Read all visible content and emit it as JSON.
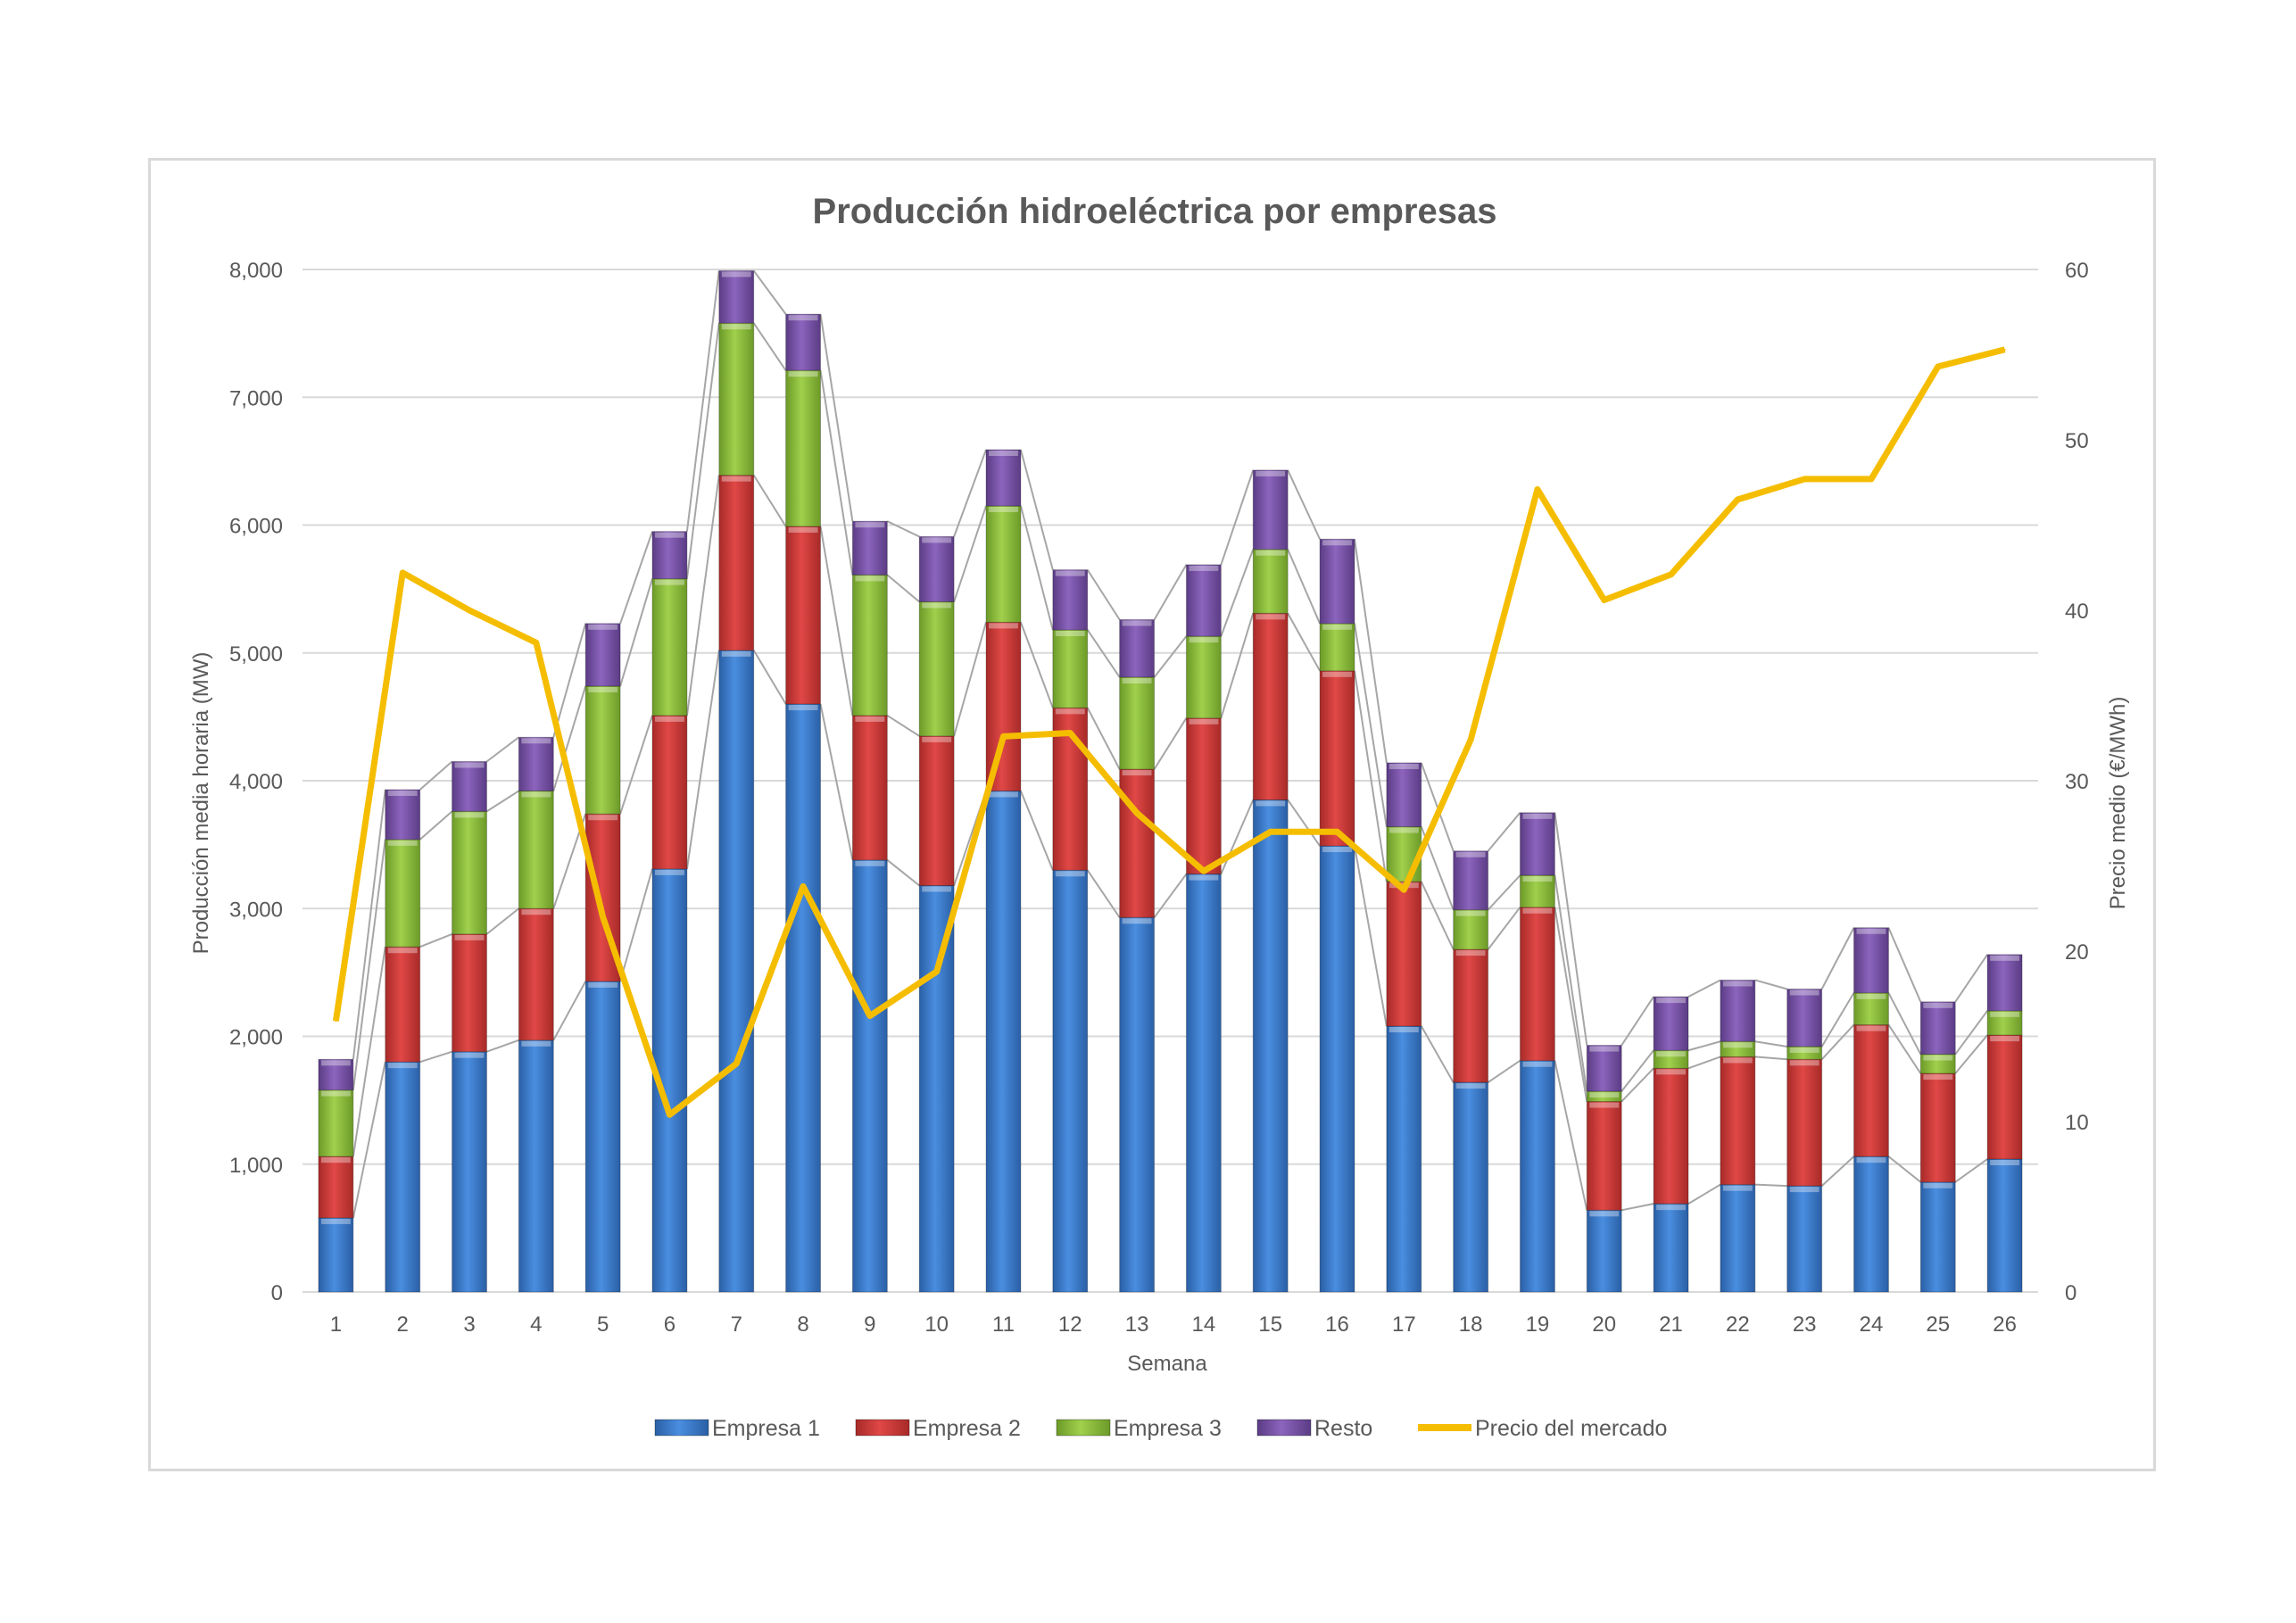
{
  "chart_data": {
    "type": "bar",
    "stacked": true,
    "title": "Producción hidroeléctrica por empresas",
    "xlabel": "Semana",
    "ylabel": "Producción media horaria (MW)",
    "y2label": "Precio medio (€/MWh)",
    "ylim": [
      0,
      8000
    ],
    "y2lim": [
      0,
      60
    ],
    "yticks": [
      "0",
      "1,000",
      "2,000",
      "3,000",
      "4,000",
      "5,000",
      "6,000",
      "7,000",
      "8,000"
    ],
    "y2ticks": [
      "0",
      "10",
      "20",
      "30",
      "40",
      "50",
      "60"
    ],
    "grid": true,
    "legend_position": "bottom",
    "categories": [
      "1",
      "2",
      "3",
      "4",
      "5",
      "6",
      "7",
      "8",
      "9",
      "10",
      "11",
      "12",
      "13",
      "14",
      "15",
      "16",
      "17",
      "18",
      "19",
      "20",
      "21",
      "22",
      "23",
      "24",
      "25",
      "26"
    ],
    "series": [
      {
        "name": "Empresa 1",
        "kind": "bar",
        "color": "#3e7fcf",
        "values": [
          580,
          1800,
          1880,
          1970,
          2430,
          3310,
          5020,
          4600,
          3380,
          3180,
          3920,
          3300,
          2930,
          3270,
          3850,
          3490,
          2080,
          1640,
          1810,
          640,
          690,
          840,
          830,
          1060,
          860,
          1040
        ]
      },
      {
        "name": "Empresa 2",
        "kind": "bar",
        "color": "#d03c3a",
        "values": [
          480,
          900,
          920,
          1030,
          1310,
          1200,
          1370,
          1390,
          1130,
          1170,
          1320,
          1270,
          1160,
          1220,
          1460,
          1370,
          1130,
          1040,
          1200,
          850,
          1060,
          1000,
          990,
          1030,
          850,
          970
        ]
      },
      {
        "name": "Empresa 3",
        "kind": "bar",
        "color": "#8fc13e",
        "values": [
          520,
          840,
          960,
          920,
          1000,
          1070,
          1190,
          1220,
          1100,
          1050,
          910,
          610,
          720,
          640,
          500,
          370,
          430,
          310,
          250,
          80,
          140,
          120,
          100,
          250,
          150,
          190
        ]
      },
      {
        "name": "Resto",
        "kind": "bar",
        "color": "#7c56ab",
        "values": [
          240,
          390,
          390,
          420,
          490,
          370,
          410,
          440,
          420,
          510,
          440,
          470,
          450,
          560,
          620,
          660,
          500,
          460,
          490,
          360,
          420,
          480,
          450,
          510,
          410,
          440
        ]
      },
      {
        "name": "Precio del mercado",
        "kind": "line",
        "axis": "right",
        "color": "#f5bd00",
        "values": [
          15.9,
          42.2,
          40.0,
          38.1,
          22.0,
          10.4,
          13.4,
          23.8,
          16.2,
          18.8,
          32.6,
          32.8,
          28.1,
          24.7,
          27.0,
          27.0,
          23.6,
          32.4,
          47.1,
          40.6,
          42.1,
          46.5,
          47.7,
          47.7,
          54.3,
          55.3
        ]
      }
    ]
  }
}
